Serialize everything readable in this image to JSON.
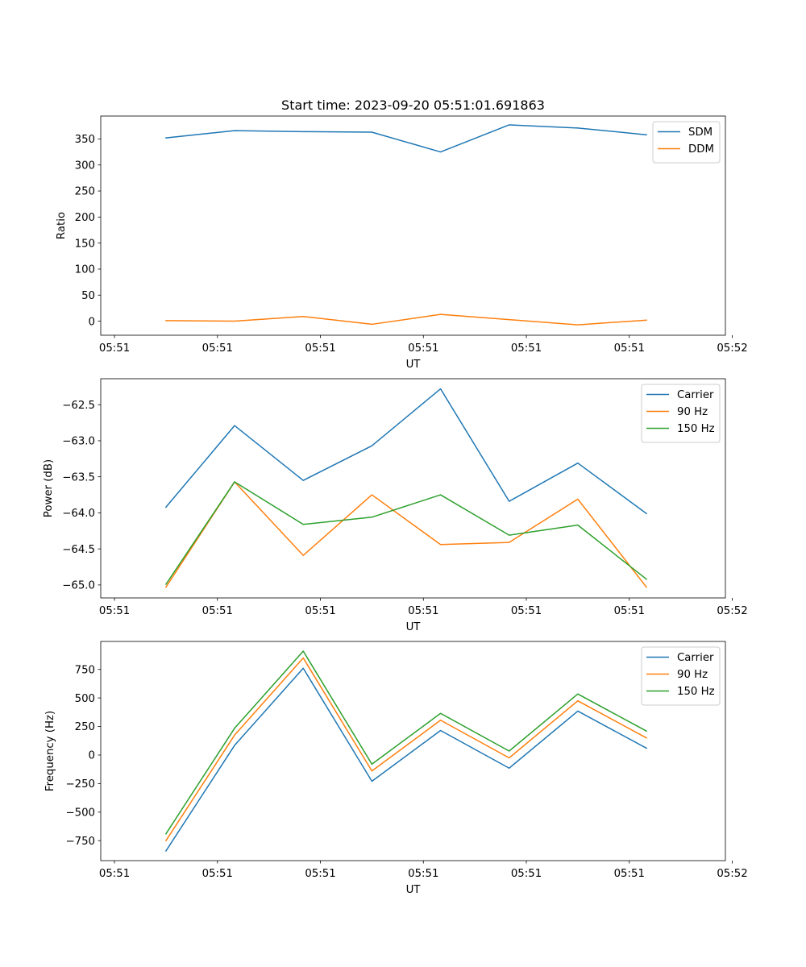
{
  "chart_data": [
    {
      "type": "line",
      "title": "Start time: 2023-09-20 05:51:01.691863",
      "xlabel": "UT",
      "ylabel": "Ratio",
      "grid": false,
      "legend_position": "top-right",
      "xlim": [
        -0.2,
        8.9
      ],
      "ylim": [
        -27,
        394
      ],
      "x": [
        0.75,
        1.75,
        2.75,
        3.75,
        4.75,
        5.75,
        6.75,
        7.75
      ],
      "xticks": [
        0,
        1.5,
        3,
        4.5,
        6,
        7.5,
        9
      ],
      "xtick_labels": [
        "05:51",
        "05:51",
        "05:51",
        "05:51",
        "05:51",
        "05:51",
        "05:52"
      ],
      "yticks": [
        0,
        50,
        100,
        150,
        200,
        250,
        300,
        350
      ],
      "ytick_labels": [
        "0",
        "50",
        "100",
        "150",
        "200",
        "250",
        "300",
        "350"
      ],
      "series": [
        {
          "name": "SDM",
          "color": "#1f77b4",
          "values": [
            352,
            366,
            364,
            363,
            325,
            377,
            371,
            358
          ]
        },
        {
          "name": "DDM",
          "color": "#ff7f0e",
          "values": [
            1,
            0,
            9,
            -6,
            13,
            3,
            -7,
            2
          ]
        }
      ]
    },
    {
      "type": "line",
      "title": "",
      "xlabel": "UT",
      "ylabel": "Power (dB)",
      "grid": false,
      "legend_position": "top-right",
      "xlim": [
        -0.2,
        8.9
      ],
      "ylim": [
        -65.18,
        -62.14
      ],
      "x": [
        0.75,
        1.75,
        2.75,
        3.75,
        4.75,
        5.75,
        6.75,
        7.75
      ],
      "xticks": [
        0,
        1.5,
        3,
        4.5,
        6,
        7.5,
        9
      ],
      "xtick_labels": [
        "05:51",
        "05:51",
        "05:51",
        "05:51",
        "05:51",
        "05:51",
        "05:52"
      ],
      "yticks": [
        -62.5,
        -63.0,
        -63.5,
        -64.0,
        -64.5,
        -65.0
      ],
      "ytick_labels": [
        "−62.5",
        "−63.0",
        "−63.5",
        "−64.0",
        "−64.5",
        "−65.0"
      ],
      "series": [
        {
          "name": "Carrier",
          "color": "#1f77b4",
          "values": [
            -63.92,
            -62.79,
            -63.55,
            -63.07,
            -62.28,
            -63.84,
            -63.31,
            -64.01
          ]
        },
        {
          "name": "90 Hz",
          "color": "#ff7f0e",
          "values": [
            -65.03,
            -63.57,
            -64.59,
            -63.75,
            -64.44,
            -64.41,
            -63.81,
            -65.03
          ]
        },
        {
          "name": "150 Hz",
          "color": "#2ca02c",
          "values": [
            -64.99,
            -63.57,
            -64.16,
            -64.06,
            -63.75,
            -64.31,
            -64.17,
            -64.92
          ]
        }
      ]
    },
    {
      "type": "line",
      "title": "",
      "xlabel": "UT",
      "ylabel": "Frequency (Hz)",
      "grid": false,
      "legend_position": "top-right",
      "xlim": [
        -0.2,
        8.9
      ],
      "ylim": [
        -925,
        995
      ],
      "x": [
        0.75,
        1.75,
        2.75,
        3.75,
        4.75,
        5.75,
        6.75,
        7.75
      ],
      "xticks": [
        0,
        1.5,
        3,
        4.5,
        6,
        7.5,
        9
      ],
      "xtick_labels": [
        "05:51",
        "05:51",
        "05:51",
        "05:51",
        "05:51",
        "05:51",
        "05:52"
      ],
      "yticks": [
        750,
        500,
        250,
        0,
        -250,
        -500,
        -750
      ],
      "ytick_labels": [
        "750",
        "500",
        "250",
        "0",
        "−250",
        "−500",
        "−750"
      ],
      "series": [
        {
          "name": "Carrier",
          "color": "#1f77b4",
          "values": [
            -840,
            85,
            760,
            -230,
            215,
            -115,
            385,
            60
          ]
        },
        {
          "name": "90 Hz",
          "color": "#ff7f0e",
          "values": [
            -750,
            175,
            850,
            -140,
            305,
            -25,
            475,
            150
          ]
        },
        {
          "name": "150 Hz",
          "color": "#2ca02c",
          "values": [
            -690,
            235,
            910,
            -80,
            365,
            35,
            535,
            210
          ]
        }
      ]
    }
  ]
}
